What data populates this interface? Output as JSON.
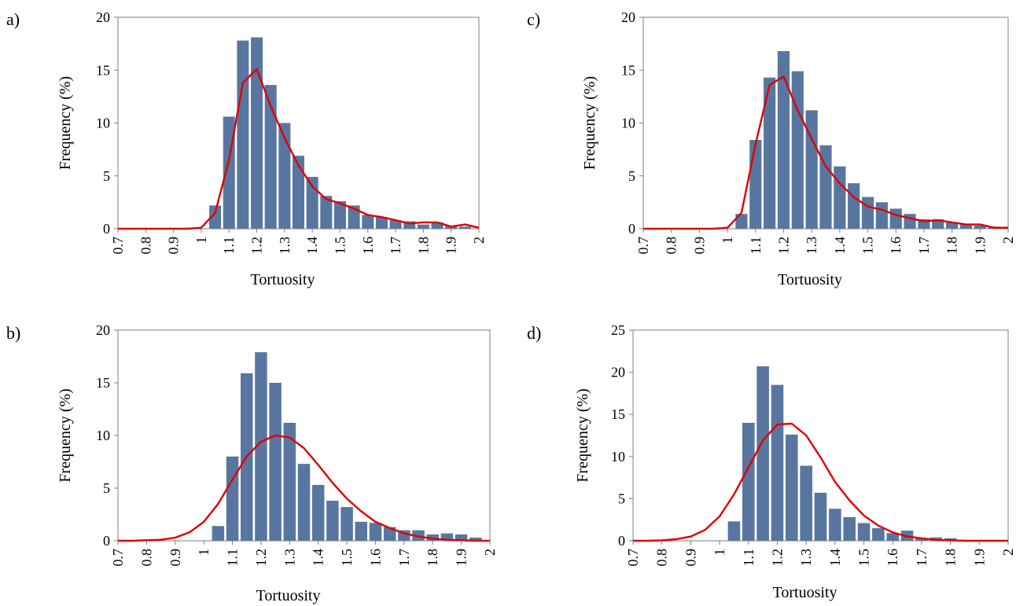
{
  "colors": {
    "bar": "#5876a0",
    "curve": "#e00000",
    "axis": "#7f7f7f",
    "background": "#ffffff"
  },
  "x_ticks": [
    "0.7",
    "0.8",
    "0.9",
    "1",
    "1.1",
    "1.2",
    "1.3",
    "1.4",
    "1.5",
    "1.6",
    "1.7",
    "1.8",
    "1.9",
    "2"
  ],
  "chart_data": [
    {
      "panel_label": "a)",
      "type": "bar",
      "xlabel": "Tortuosity",
      "ylabel": "Frequency (%)",
      "xlim": [
        0.7,
        2.0
      ],
      "ylim": [
        0,
        20
      ],
      "y_ticks": [
        0,
        5,
        10,
        15,
        20
      ],
      "bars": {
        "x": [
          1.05,
          1.1,
          1.15,
          1.2,
          1.25,
          1.3,
          1.35,
          1.4,
          1.45,
          1.5,
          1.55,
          1.6,
          1.65,
          1.7,
          1.75,
          1.8,
          1.85,
          1.9,
          1.95
        ],
        "values": [
          2.2,
          10.6,
          17.8,
          18.1,
          13.6,
          10.0,
          6.9,
          4.9,
          3.1,
          2.6,
          2.2,
          1.3,
          1.1,
          0.8,
          0.7,
          0.4,
          0.6,
          0.3,
          0.2
        ]
      },
      "curve": {
        "x": [
          0.7,
          0.75,
          0.8,
          0.85,
          0.9,
          0.95,
          1.0,
          1.05,
          1.1,
          1.15,
          1.2,
          1.25,
          1.3,
          1.35,
          1.4,
          1.45,
          1.5,
          1.55,
          1.6,
          1.65,
          1.7,
          1.75,
          1.8,
          1.85,
          1.9,
          1.95,
          2.0
        ],
        "values": [
          0,
          0,
          0,
          0,
          0,
          0,
          0.1,
          1.5,
          6.5,
          13.8,
          15.1,
          11.6,
          8.6,
          6.0,
          4.0,
          2.8,
          2.4,
          1.9,
          1.3,
          1.1,
          0.8,
          0.5,
          0.6,
          0.6,
          0.2,
          0.4,
          0.1
        ]
      },
      "grid": false,
      "legend": "none"
    },
    {
      "panel_label": "b)",
      "type": "bar",
      "xlabel": "Tortuosity",
      "ylabel": "Frequency (%)",
      "xlim": [
        0.7,
        2.0
      ],
      "ylim": [
        0,
        20
      ],
      "y_ticks": [
        0,
        5,
        10,
        15,
        20
      ],
      "bars": {
        "x": [
          1.05,
          1.1,
          1.15,
          1.2,
          1.25,
          1.3,
          1.35,
          1.4,
          1.45,
          1.5,
          1.55,
          1.6,
          1.65,
          1.7,
          1.75,
          1.8,
          1.85,
          1.9,
          1.95
        ],
        "values": [
          1.4,
          8.0,
          15.9,
          17.9,
          15.0,
          11.2,
          7.3,
          5.3,
          3.8,
          3.2,
          1.8,
          1.7,
          1.3,
          1.0,
          1.0,
          0.6,
          0.7,
          0.6,
          0.3
        ]
      },
      "curve": {
        "x": [
          0.7,
          0.75,
          0.8,
          0.85,
          0.9,
          0.95,
          1.0,
          1.05,
          1.1,
          1.15,
          1.2,
          1.25,
          1.3,
          1.35,
          1.4,
          1.45,
          1.5,
          1.55,
          1.6,
          1.65,
          1.7,
          1.75,
          1.8,
          1.85,
          1.9,
          1.95,
          2.0
        ],
        "values": [
          0,
          0,
          0.05,
          0.1,
          0.3,
          0.8,
          1.8,
          3.5,
          5.8,
          8.0,
          9.4,
          10.0,
          9.8,
          8.8,
          7.2,
          5.5,
          4.0,
          2.8,
          1.8,
          1.2,
          0.7,
          0.4,
          0.2,
          0.1,
          0.05,
          0,
          0
        ]
      },
      "grid": false,
      "legend": "none"
    },
    {
      "panel_label": "c)",
      "type": "bar",
      "xlabel": "Tortuosity",
      "ylabel": "Frequency (%)",
      "xlim": [
        0.7,
        2.0
      ],
      "ylim": [
        0,
        20
      ],
      "y_ticks": [
        0,
        5,
        10,
        15,
        20
      ],
      "bars": {
        "x": [
          1.05,
          1.1,
          1.15,
          1.2,
          1.25,
          1.3,
          1.35,
          1.4,
          1.45,
          1.5,
          1.55,
          1.6,
          1.65,
          1.7,
          1.75,
          1.8,
          1.85,
          1.9,
          1.95
        ],
        "values": [
          1.4,
          8.4,
          14.3,
          16.8,
          14.9,
          11.2,
          7.9,
          5.9,
          4.3,
          3.0,
          2.5,
          1.9,
          1.4,
          0.9,
          0.9,
          0.6,
          0.4,
          0.3,
          0.2
        ]
      },
      "curve": {
        "x": [
          0.7,
          0.75,
          0.8,
          0.85,
          0.9,
          0.95,
          1.0,
          1.05,
          1.1,
          1.15,
          1.2,
          1.25,
          1.3,
          1.35,
          1.4,
          1.45,
          1.5,
          1.55,
          1.6,
          1.65,
          1.7,
          1.75,
          1.8,
          1.85,
          1.9,
          1.95,
          2.0
        ],
        "values": [
          0,
          0,
          0,
          0,
          0,
          0,
          0.1,
          1.5,
          8.0,
          13.6,
          14.4,
          11.2,
          8.5,
          5.9,
          4.3,
          3.0,
          2.1,
          1.8,
          1.3,
          1.0,
          0.7,
          0.8,
          0.6,
          0.4,
          0.4,
          0.1,
          0.1
        ]
      },
      "grid": false,
      "legend": "none"
    },
    {
      "panel_label": "d)",
      "type": "bar",
      "xlabel": "Tortuosity",
      "ylabel": "Frequency (%)",
      "xlim": [
        0.7,
        2.0
      ],
      "ylim": [
        0,
        25
      ],
      "y_ticks": [
        0,
        5,
        10,
        15,
        20,
        25
      ],
      "bars": {
        "x": [
          1.05,
          1.1,
          1.15,
          1.2,
          1.25,
          1.3,
          1.35,
          1.4,
          1.45,
          1.5,
          1.55,
          1.6,
          1.65,
          1.7,
          1.75,
          1.8,
          1.85,
          1.9,
          1.95
        ],
        "values": [
          2.3,
          14.0,
          20.7,
          18.5,
          12.6,
          8.9,
          5.7,
          3.8,
          2.8,
          2.1,
          1.5,
          0.9,
          1.2,
          0.3,
          0.4,
          0.3,
          0.1,
          0.1,
          0.1
        ]
      },
      "curve": {
        "x": [
          0.7,
          0.75,
          0.8,
          0.85,
          0.9,
          0.95,
          1.0,
          1.05,
          1.1,
          1.15,
          1.2,
          1.25,
          1.3,
          1.35,
          1.4,
          1.45,
          1.5,
          1.55,
          1.6,
          1.65,
          1.7,
          1.75,
          1.8,
          1.85,
          1.9,
          1.95,
          2.0
        ],
        "values": [
          0,
          0,
          0.05,
          0.2,
          0.5,
          1.3,
          2.9,
          5.5,
          8.7,
          11.9,
          13.8,
          13.9,
          12.5,
          9.9,
          7.0,
          4.8,
          3.0,
          1.8,
          1.0,
          0.5,
          0.3,
          0.1,
          0.05,
          0,
          0,
          0,
          0
        ]
      },
      "grid": false,
      "legend": "none"
    }
  ]
}
